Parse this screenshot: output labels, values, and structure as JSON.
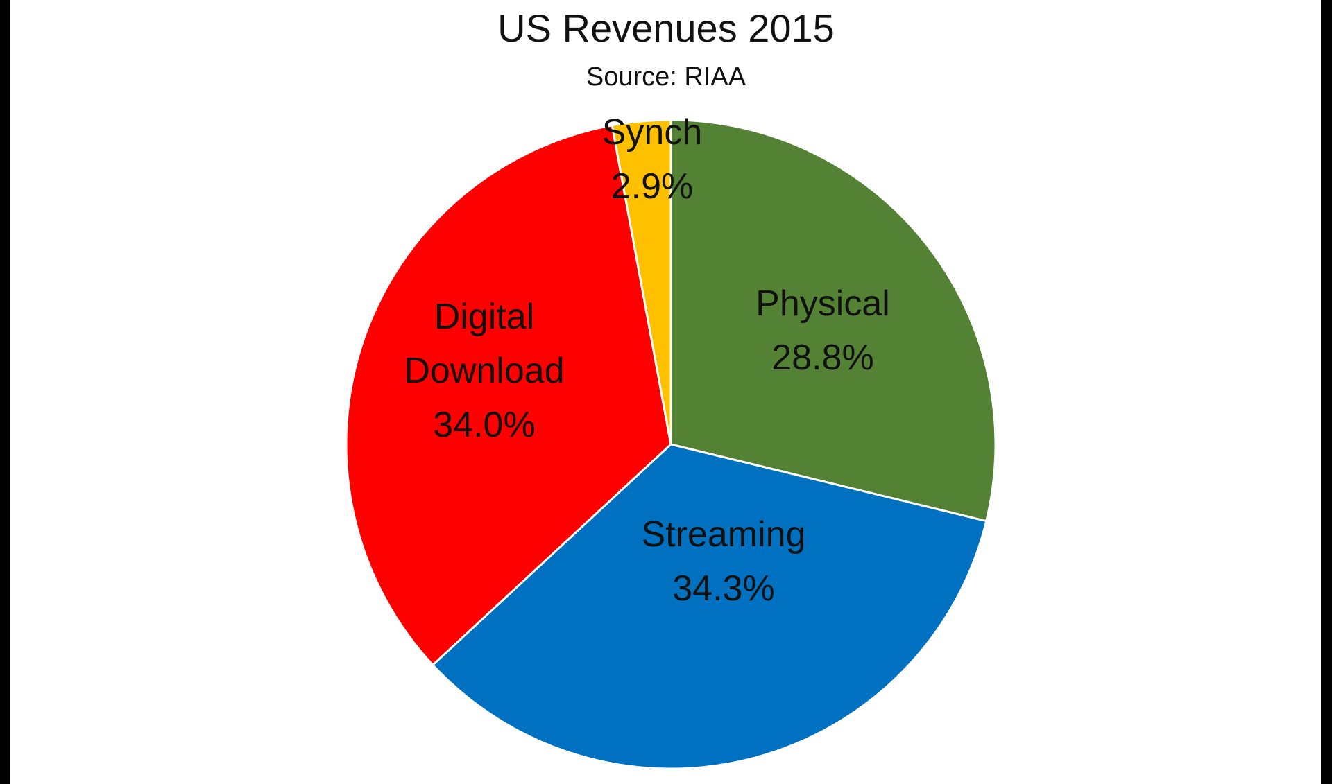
{
  "chart_data": {
    "type": "pie",
    "title": "US Revenues 2015",
    "subtitle": "Source: RIAA",
    "start": "top",
    "direction": "clockwise",
    "slices": [
      {
        "label": "Physical",
        "value": 28.8,
        "value_label": "28.8%",
        "color": "#548235"
      },
      {
        "label": "Streaming",
        "value": 34.3,
        "value_label": "34.3%",
        "color": "#0070C0"
      },
      {
        "label": "Digital Download",
        "value": 34.0,
        "value_label": "34.0%",
        "color": "#FF0000"
      },
      {
        "label": "Synch",
        "value": 2.9,
        "value_label": "2.9%",
        "color": "#FFC000"
      }
    ]
  }
}
